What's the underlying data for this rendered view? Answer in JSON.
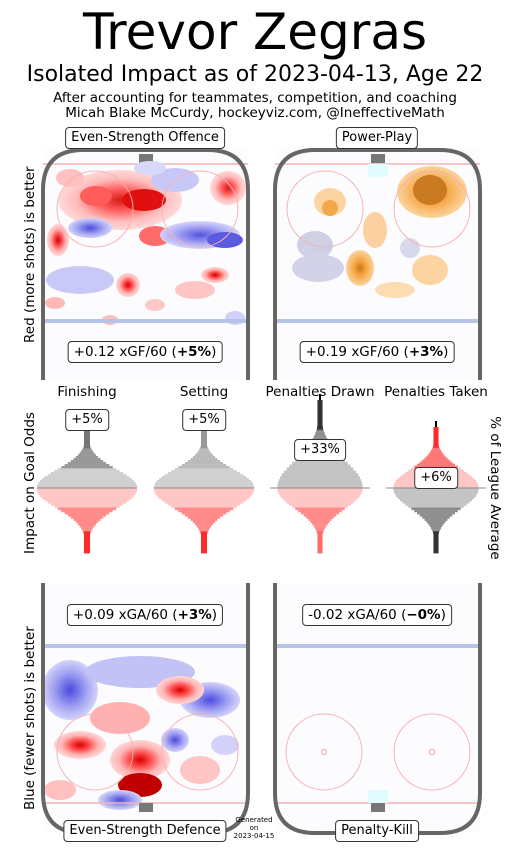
{
  "header": {
    "title": "Trevor Zegras",
    "subtitle": "Isolated Impact as of 2023-04-13, Age 22",
    "line1": "After accounting for teammates, competition, and coaching",
    "line2": "Micah Blake McCurdy, hockeyviz.com, @IneffectiveMath"
  },
  "axis_labels": {
    "offence_side": "Red (more shots) is better",
    "defence_side": "Blue (fewer shots) is better",
    "violin_left": "Impact on Goal Odds",
    "violin_right": "% of League Average"
  },
  "panels": {
    "es_offence": {
      "label": "Even-Strength Offence",
      "stat_prefix": "+0.12 xGF/60 (",
      "stat_pct": "+5%",
      "stat_suffix": ")"
    },
    "power_play": {
      "label": "Power-Play",
      "stat_prefix": "+0.19 xGF/60 (",
      "stat_pct": "+3%",
      "stat_suffix": ")"
    },
    "es_defence": {
      "label": "Even-Strength Defence",
      "stat_prefix": "+0.09 xGA/60 (",
      "stat_pct": "+3%",
      "stat_suffix": ")"
    },
    "penalty_kill": {
      "label": "Penalty-Kill",
      "stat_prefix": "-0.02 xGA/60 (",
      "stat_pct": "−0%",
      "stat_suffix": ")"
    }
  },
  "footer": {
    "generated_line1": "Generated",
    "generated_line2": "on",
    "generated_line3": "2023-04-15"
  },
  "colors": {
    "red": "#ff2a2a",
    "blue": "#3a3aff",
    "orange": "#f39a2b",
    "rink": "#666666",
    "goal_line": "#f0a0a0",
    "blue_line": "#b8c4e6"
  },
  "chart_data": [
    {
      "type": "violin",
      "title": "",
      "categories": [
        "Finishing",
        "Setting",
        "Penalties Drawn",
        "Penalties Taken"
      ],
      "values": [
        5,
        5,
        33,
        6
      ],
      "value_labels": [
        "+5%",
        "+5%",
        "+33%",
        "+6%"
      ],
      "unit": "% of League Average"
    },
    {
      "type": "heatmap",
      "panels": [
        "Even-Strength Offence",
        "Power-Play",
        "Even-Strength Defence",
        "Penalty-Kill"
      ],
      "rate_labels": [
        "+0.12 xGF/60",
        "+0.19 xGF/60",
        "+0.09 xGA/60",
        "-0.02 xGA/60"
      ],
      "pct_values": [
        5,
        3,
        3,
        0
      ]
    }
  ]
}
